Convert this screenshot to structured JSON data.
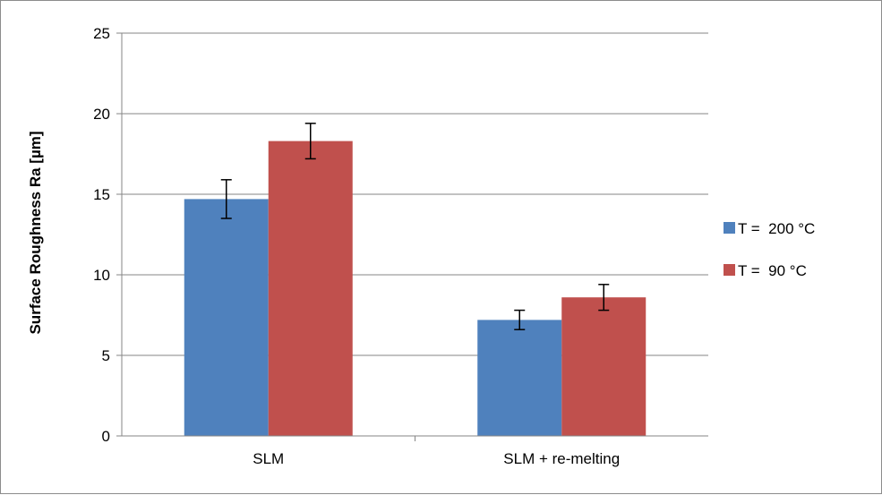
{
  "chart_data": {
    "type": "bar",
    "title": "",
    "xlabel": "",
    "ylabel": "Surface Roughness Ra [µm]",
    "categories": [
      "SLM",
      "SLM + re-melting"
    ],
    "series": [
      {
        "name": "T =  200 °C",
        "color": "#4F81BD",
        "values": [
          14.7,
          7.2
        ],
        "errors": [
          1.2,
          0.6
        ]
      },
      {
        "name": "T =  90 °C",
        "color": "#C0504D",
        "values": [
          18.3,
          8.6
        ],
        "errors": [
          1.1,
          0.8
        ]
      }
    ],
    "ylim": [
      0,
      25
    ],
    "yticks": [
      0,
      5,
      10,
      15,
      20,
      25
    ],
    "grid": true,
    "legend_position": "right"
  }
}
